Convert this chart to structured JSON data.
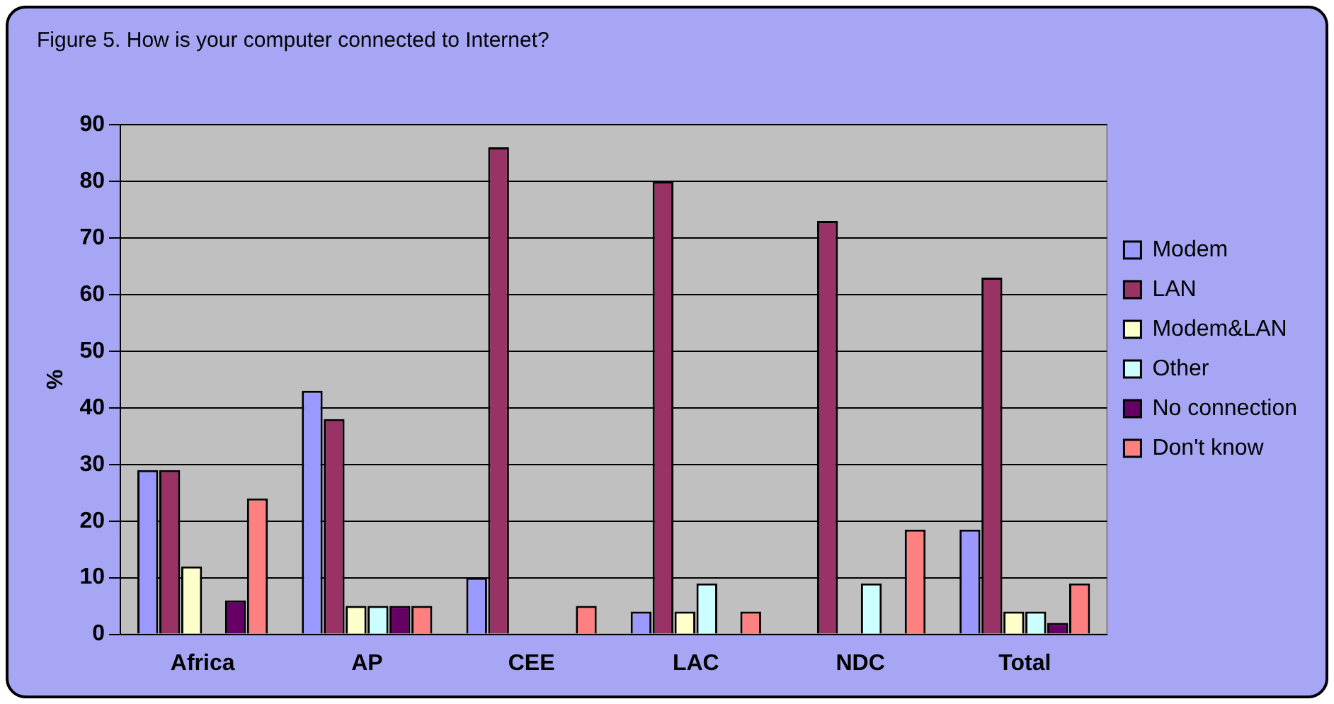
{
  "chart_data": {
    "type": "bar",
    "title": "Figure 5. How is your computer connected to Internet?",
    "ylabel": "%",
    "categories": [
      "Africa",
      "AP",
      "CEE",
      "LAC",
      "NDC",
      "Total"
    ],
    "series": [
      {
        "name": "Modem",
        "color": "#9999ff",
        "values": [
          29,
          43,
          10,
          4,
          0,
          18.5
        ]
      },
      {
        "name": "LAN",
        "color": "#993366",
        "values": [
          29,
          38,
          86,
          80,
          73,
          63
        ]
      },
      {
        "name": "Modem&LAN",
        "color": "#ffffcc",
        "values": [
          12,
          5,
          0,
          4,
          0,
          4
        ]
      },
      {
        "name": "Other",
        "color": "#ccffff",
        "values": [
          0,
          5,
          0,
          9,
          9,
          4
        ]
      },
      {
        "name": "No connection",
        "color": "#660066",
        "values": [
          6,
          5,
          0,
          0,
          0,
          2
        ]
      },
      {
        "name": "Don't know",
        "color": "#ff8080",
        "values": [
          24,
          5,
          5,
          4,
          18.5,
          9
        ]
      }
    ],
    "ylim": [
      0,
      90
    ],
    "yticks": [
      0,
      10,
      20,
      30,
      40,
      50,
      60,
      70,
      80,
      90
    ],
    "grid": "y",
    "legend": "right"
  }
}
